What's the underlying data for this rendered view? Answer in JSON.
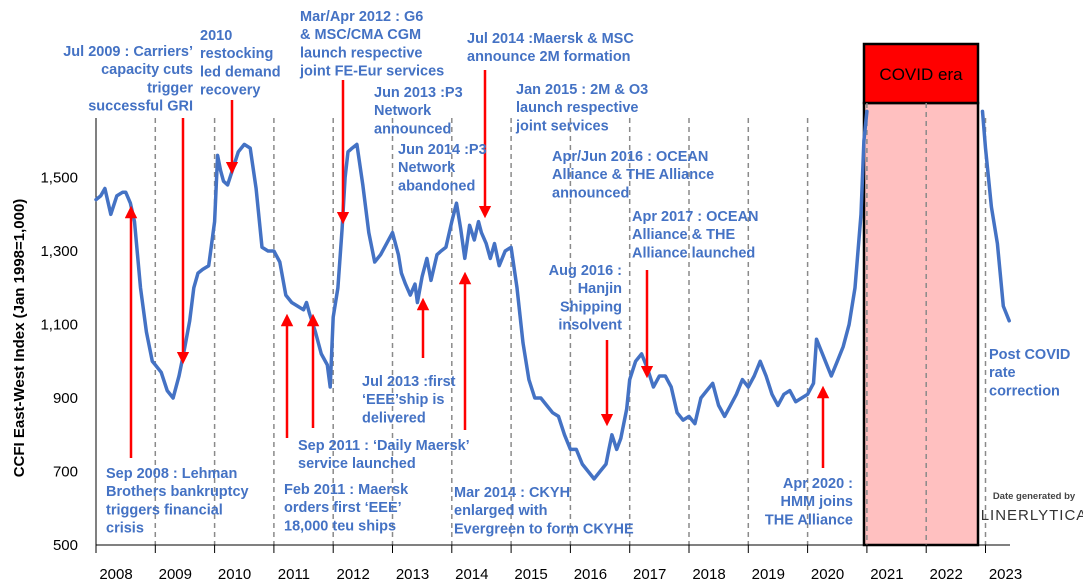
{
  "chart_data": {
    "type": "line",
    "ylabel": "CCFI East-West Index (Jan 1998=1,000)",
    "ylim": [
      500,
      1700
    ],
    "yticks": [
      500,
      700,
      900,
      1100,
      1300,
      1500
    ],
    "ytick_labels": [
      "500",
      "700",
      "900",
      "1,100",
      "1,300",
      "1,500"
    ],
    "xlim": [
      2008.0,
      2023.5
    ],
    "xtick_labels": [
      "2008",
      "2009",
      "2010",
      "2011",
      "2012",
      "2013",
      "2014",
      "2015",
      "2016",
      "2017",
      "2018",
      "2019",
      "2020",
      "2021",
      "2022",
      "2023"
    ],
    "colors": {
      "line": "#4472c4",
      "text": "#4472c4",
      "arrow": "#ff0000",
      "covid_fill": "#ffc0c0",
      "covid_border": "#000000",
      "covid_label_fill": "#ff0000"
    },
    "series": [
      {
        "x": [
          2008.0,
          2008.08,
          2008.15,
          2008.25,
          2008.35,
          2008.45,
          2008.5,
          2008.58,
          2008.65,
          2008.75,
          2008.85,
          2008.95,
          2009.0,
          2009.1,
          2009.2,
          2009.3,
          2009.4,
          2009.45,
          2009.5,
          2009.58,
          2009.65,
          2009.72,
          2009.8,
          2009.9,
          2010.0,
          2010.05,
          2010.1,
          2010.15,
          2010.22,
          2010.3,
          2010.4,
          2010.5,
          2010.6,
          2010.7,
          2010.8,
          2010.9,
          2011.0,
          2011.1,
          2011.2,
          2011.3,
          2011.4,
          2011.5,
          2011.55,
          2011.6,
          2011.7,
          2011.8,
          2011.9,
          2011.95,
          2012.0,
          2012.08,
          2012.15,
          2012.2,
          2012.25,
          2012.32,
          2012.4,
          2012.5,
          2012.6,
          2012.7,
          2012.8,
          2012.9,
          2013.0,
          2013.1,
          2013.15,
          2013.22,
          2013.3,
          2013.38,
          2013.42,
          2013.5,
          2013.58,
          2013.65,
          2013.75,
          2013.82,
          2013.9,
          2014.0,
          2014.08,
          2014.15,
          2014.22,
          2014.3,
          2014.38,
          2014.45,
          2014.5,
          2014.58,
          2014.65,
          2014.72,
          2014.8,
          2014.9,
          2015.0,
          2015.1,
          2015.2,
          2015.3,
          2015.4,
          2015.5,
          2015.6,
          2015.7,
          2015.8,
          2015.9,
          2016.0,
          2016.1,
          2016.2,
          2016.3,
          2016.4,
          2016.5,
          2016.6,
          2016.65,
          2016.7,
          2016.78,
          2016.85,
          2016.95,
          2017.0,
          2017.1,
          2017.2,
          2017.3,
          2017.4,
          2017.5,
          2017.6,
          2017.7,
          2017.8,
          2017.9,
          2018.0,
          2018.1,
          2018.2,
          2018.3,
          2018.4,
          2018.5,
          2018.6,
          2018.7,
          2018.8,
          2018.9,
          2019.0,
          2019.1,
          2019.2,
          2019.3,
          2019.4,
          2019.5,
          2019.6,
          2019.7,
          2019.8,
          2019.9,
          2020.0,
          2020.1,
          2020.15,
          2020.2,
          2020.3,
          2020.4,
          2020.5,
          2020.6,
          2020.7,
          2020.8,
          2020.9,
          2020.95,
          2021.0,
          2022.95,
          2023.0,
          2023.1,
          2023.2,
          2023.3,
          2023.4
        ],
        "values": [
          1440,
          1450,
          1470,
          1400,
          1450,
          1460,
          1460,
          1430,
          1380,
          1200,
          1080,
          1000,
          990,
          970,
          920,
          900,
          960,
          1000,
          1040,
          1110,
          1200,
          1240,
          1250,
          1260,
          1380,
          1560,
          1520,
          1490,
          1480,
          1520,
          1570,
          1590,
          1580,
          1470,
          1310,
          1300,
          1300,
          1270,
          1180,
          1160,
          1150,
          1140,
          1160,
          1130,
          1080,
          1020,
          990,
          930,
          1120,
          1200,
          1360,
          1500,
          1570,
          1580,
          1590,
          1480,
          1350,
          1270,
          1290,
          1320,
          1350,
          1290,
          1240,
          1210,
          1180,
          1210,
          1160,
          1230,
          1280,
          1220,
          1290,
          1300,
          1310,
          1380,
          1430,
          1360,
          1280,
          1370,
          1330,
          1380,
          1350,
          1320,
          1280,
          1320,
          1260,
          1300,
          1310,
          1200,
          1050,
          950,
          900,
          900,
          880,
          860,
          850,
          800,
          760,
          760,
          720,
          700,
          680,
          700,
          720,
          760,
          800,
          760,
          790,
          870,
          950,
          1000,
          1020,
          980,
          930,
          960,
          960,
          930,
          860,
          840,
          850,
          830,
          900,
          920,
          940,
          880,
          850,
          880,
          910,
          950,
          930,
          960,
          1000,
          960,
          910,
          880,
          910,
          920,
          890,
          900,
          910,
          940,
          1060,
          1040,
          1000,
          960,
          1000,
          1040,
          1100,
          1200,
          1400,
          1600,
          1680,
          1680,
          1580,
          1420,
          1320,
          1150,
          1110
        ]
      }
    ],
    "covid_label": "COVID era",
    "annotations": {
      "a_jul2009": [
        "Jul 2009 : Carriers’",
        "capacity cuts",
        "trigger",
        "successful GRI"
      ],
      "a_2010": [
        "2010",
        "restocking",
        "led demand",
        "recovery"
      ],
      "a_mar2012": [
        "Mar/Apr 2012 : G6",
        "& MSC/CMA CGM",
        "launch respective",
        "joint FE-Eur services"
      ],
      "a_jul2014": [
        "Jul 2014 :Maersk & MSC",
        "announce 2M formation"
      ],
      "a_jun2013": [
        "Jun 2013 :P3",
        "Network",
        "announced"
      ],
      "a_jun2014": [
        "Jun 2014 :P3",
        "Network",
        "abandoned"
      ],
      "a_jan2015": [
        "Jan 2015 : 2M & O3",
        "launch respective",
        "joint services"
      ],
      "a_apr2016": [
        "Apr/Jun 2016 : OCEAN",
        "Alliance & THE Alliance",
        "announced"
      ],
      "a_apr2017": [
        "Apr 2017 : OCEAN",
        "Alliance & THE",
        "Alliance launched"
      ],
      "a_aug2016": [
        "Aug 2016 :",
        "Hanjin",
        "Shipping",
        "insolvent"
      ],
      "a_jul2013": [
        "Jul 2013 :first",
        "‘EEE’ship is",
        "delivered"
      ],
      "a_sep2011": [
        "Sep 2011 : ‘Daily Maersk’",
        "service launched"
      ],
      "a_sep2008": [
        "Sep 2008 : Lehman",
        "Brothers bankruptcy",
        "triggers financial",
        "crisis"
      ],
      "a_feb2011": [
        "Feb 2011 : Maersk",
        "orders first ‘EEE’",
        "18,000 teu ships"
      ],
      "a_mar2014": [
        "Mar 2014 : CKYH",
        "enlarged with",
        "Evergreen to form CKYHE"
      ],
      "a_apr2020": [
        "Apr 2020 :",
        "HMM joins",
        "THE Alliance"
      ],
      "a_post": [
        "Post COVID",
        "rate",
        "correction"
      ]
    },
    "credit_line1": "Date generated by",
    "credit_line2": "LINERLYTICA"
  }
}
